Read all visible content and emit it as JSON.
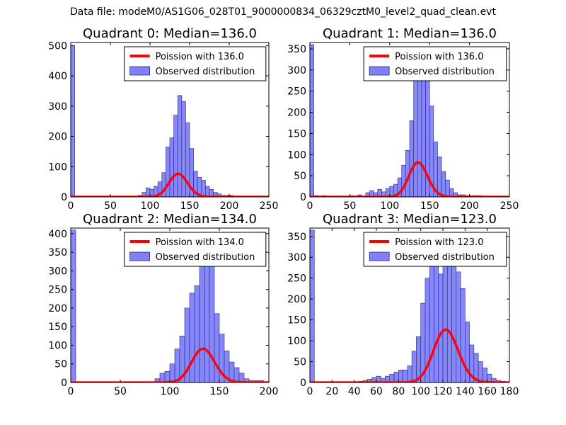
{
  "figure": {
    "suptitle": "Data file: modeM0/AS1G06_028T01_9000000834_06329cztM0_level2_quad_clean.evt"
  },
  "colors": {
    "bars": "#8080ff",
    "bar_edge": "#2a2a6a",
    "fit": "#ff0000"
  },
  "chart_data": [
    {
      "type": "bar",
      "title": "Quadrant 0: Median=136.0",
      "median": 136.0,
      "xlim": [
        0,
        250
      ],
      "ylim": [
        0,
        510
      ],
      "xticks": [
        0,
        50,
        100,
        150,
        200,
        250
      ],
      "yticks": [
        0,
        100,
        200,
        300,
        400,
        500
      ],
      "bin_width": 5,
      "bins": [
        {
          "x": 0,
          "y": 500
        },
        {
          "x": 85,
          "y": 5
        },
        {
          "x": 90,
          "y": 15
        },
        {
          "x": 95,
          "y": 30
        },
        {
          "x": 100,
          "y": 25
        },
        {
          "x": 105,
          "y": 35
        },
        {
          "x": 110,
          "y": 50
        },
        {
          "x": 115,
          "y": 80
        },
        {
          "x": 120,
          "y": 165
        },
        {
          "x": 125,
          "y": 195
        },
        {
          "x": 130,
          "y": 270
        },
        {
          "x": 135,
          "y": 335
        },
        {
          "x": 140,
          "y": 315
        },
        {
          "x": 145,
          "y": 245
        },
        {
          "x": 150,
          "y": 160
        },
        {
          "x": 155,
          "y": 85
        },
        {
          "x": 160,
          "y": 65
        },
        {
          "x": 165,
          "y": 55
        },
        {
          "x": 170,
          "y": 35
        },
        {
          "x": 175,
          "y": 25
        },
        {
          "x": 180,
          "y": 15
        },
        {
          "x": 185,
          "y": 10
        },
        {
          "x": 190,
          "y": 5
        },
        {
          "x": 195,
          "y": 5
        },
        {
          "x": 200,
          "y": 5
        }
      ],
      "legend": {
        "fit_label": "Poission with 136.0",
        "obs_label": "Observed distribution"
      }
    },
    {
      "type": "bar",
      "title": "Quadrant 1: Median=136.0",
      "median": 136.0,
      "xlim": [
        0,
        250
      ],
      "ylim": [
        0,
        365
      ],
      "xticks": [
        0,
        50,
        100,
        150,
        200,
        250
      ],
      "yticks": [
        0,
        50,
        100,
        150,
        200,
        250,
        300,
        350
      ],
      "bin_width": 5,
      "bins": [
        {
          "x": 0,
          "y": 360
        },
        {
          "x": 5,
          "y": 3
        },
        {
          "x": 15,
          "y": 3
        },
        {
          "x": 25,
          "y": 2
        },
        {
          "x": 40,
          "y": 2
        },
        {
          "x": 50,
          "y": 3
        },
        {
          "x": 60,
          "y": 5
        },
        {
          "x": 70,
          "y": 10
        },
        {
          "x": 75,
          "y": 15
        },
        {
          "x": 80,
          "y": 10
        },
        {
          "x": 85,
          "y": 18
        },
        {
          "x": 90,
          "y": 12
        },
        {
          "x": 95,
          "y": 20
        },
        {
          "x": 100,
          "y": 25
        },
        {
          "x": 105,
          "y": 30
        },
        {
          "x": 110,
          "y": 45
        },
        {
          "x": 115,
          "y": 75
        },
        {
          "x": 120,
          "y": 110
        },
        {
          "x": 125,
          "y": 180
        },
        {
          "x": 130,
          "y": 280
        },
        {
          "x": 135,
          "y": 325
        },
        {
          "x": 140,
          "y": 340
        },
        {
          "x": 145,
          "y": 280
        },
        {
          "x": 150,
          "y": 215
        },
        {
          "x": 155,
          "y": 130
        },
        {
          "x": 160,
          "y": 95
        },
        {
          "x": 165,
          "y": 60
        },
        {
          "x": 170,
          "y": 40
        },
        {
          "x": 175,
          "y": 20
        },
        {
          "x": 180,
          "y": 10
        },
        {
          "x": 185,
          "y": 5
        },
        {
          "x": 190,
          "y": 5
        },
        {
          "x": 195,
          "y": 3
        },
        {
          "x": 200,
          "y": 3
        },
        {
          "x": 205,
          "y": 3
        },
        {
          "x": 210,
          "y": 3
        }
      ],
      "legend": {
        "fit_label": "Poission with 136.0",
        "obs_label": "Observed distribution"
      }
    },
    {
      "type": "bar",
      "title": "Quadrant 2: Median=134.0",
      "median": 134.0,
      "xlim": [
        0,
        200
      ],
      "ylim": [
        0,
        415
      ],
      "xticks": [
        0,
        50,
        100,
        150,
        200
      ],
      "yticks": [
        0,
        50,
        100,
        150,
        200,
        250,
        300,
        350,
        400
      ],
      "bin_width": 5,
      "bins": [
        {
          "x": 0,
          "y": 410
        },
        {
          "x": 85,
          "y": 10
        },
        {
          "x": 90,
          "y": 25
        },
        {
          "x": 95,
          "y": 30
        },
        {
          "x": 100,
          "y": 50
        },
        {
          "x": 105,
          "y": 90
        },
        {
          "x": 110,
          "y": 125
        },
        {
          "x": 115,
          "y": 200
        },
        {
          "x": 120,
          "y": 240
        },
        {
          "x": 125,
          "y": 260
        },
        {
          "x": 130,
          "y": 355
        },
        {
          "x": 135,
          "y": 375
        },
        {
          "x": 140,
          "y": 330
        },
        {
          "x": 145,
          "y": 185
        },
        {
          "x": 150,
          "y": 130
        },
        {
          "x": 155,
          "y": 85
        },
        {
          "x": 160,
          "y": 55
        },
        {
          "x": 165,
          "y": 40
        },
        {
          "x": 170,
          "y": 25
        },
        {
          "x": 175,
          "y": 10
        },
        {
          "x": 180,
          "y": 5
        },
        {
          "x": 185,
          "y": 5
        },
        {
          "x": 190,
          "y": 5
        }
      ],
      "legend": {
        "fit_label": "Poission with 134.0",
        "obs_label": "Observed distribution"
      }
    },
    {
      "type": "bar",
      "title": "Quadrant 3: Median=123.0",
      "median": 123.0,
      "xlim": [
        0,
        180
      ],
      "ylim": [
        0,
        370
      ],
      "xticks": [
        0,
        20,
        40,
        60,
        80,
        100,
        120,
        140,
        160,
        180
      ],
      "yticks": [
        0,
        50,
        100,
        150,
        200,
        250,
        300,
        350
      ],
      "bin_width": 4,
      "bins": [
        {
          "x": 0,
          "y": 365
        },
        {
          "x": 40,
          "y": 2
        },
        {
          "x": 44,
          "y": 3
        },
        {
          "x": 48,
          "y": 5
        },
        {
          "x": 52,
          "y": 8
        },
        {
          "x": 56,
          "y": 12
        },
        {
          "x": 60,
          "y": 15
        },
        {
          "x": 64,
          "y": 10
        },
        {
          "x": 68,
          "y": 15
        },
        {
          "x": 72,
          "y": 20
        },
        {
          "x": 76,
          "y": 25
        },
        {
          "x": 80,
          "y": 30
        },
        {
          "x": 84,
          "y": 30
        },
        {
          "x": 88,
          "y": 40
        },
        {
          "x": 92,
          "y": 75
        },
        {
          "x": 96,
          "y": 110
        },
        {
          "x": 100,
          "y": 190
        },
        {
          "x": 104,
          "y": 250
        },
        {
          "x": 108,
          "y": 300
        },
        {
          "x": 112,
          "y": 290
        },
        {
          "x": 116,
          "y": 260
        },
        {
          "x": 120,
          "y": 325
        },
        {
          "x": 124,
          "y": 310
        },
        {
          "x": 128,
          "y": 280
        },
        {
          "x": 132,
          "y": 265
        },
        {
          "x": 136,
          "y": 225
        },
        {
          "x": 140,
          "y": 145
        },
        {
          "x": 144,
          "y": 90
        },
        {
          "x": 148,
          "y": 70
        },
        {
          "x": 152,
          "y": 50
        },
        {
          "x": 156,
          "y": 35
        },
        {
          "x": 160,
          "y": 20
        },
        {
          "x": 164,
          "y": 10
        },
        {
          "x": 168,
          "y": 5
        },
        {
          "x": 172,
          "y": 3
        },
        {
          "x": 176,
          "y": 2
        }
      ],
      "legend": {
        "fit_label": "Poission with 123.0",
        "obs_label": "Observed distribution"
      }
    }
  ]
}
